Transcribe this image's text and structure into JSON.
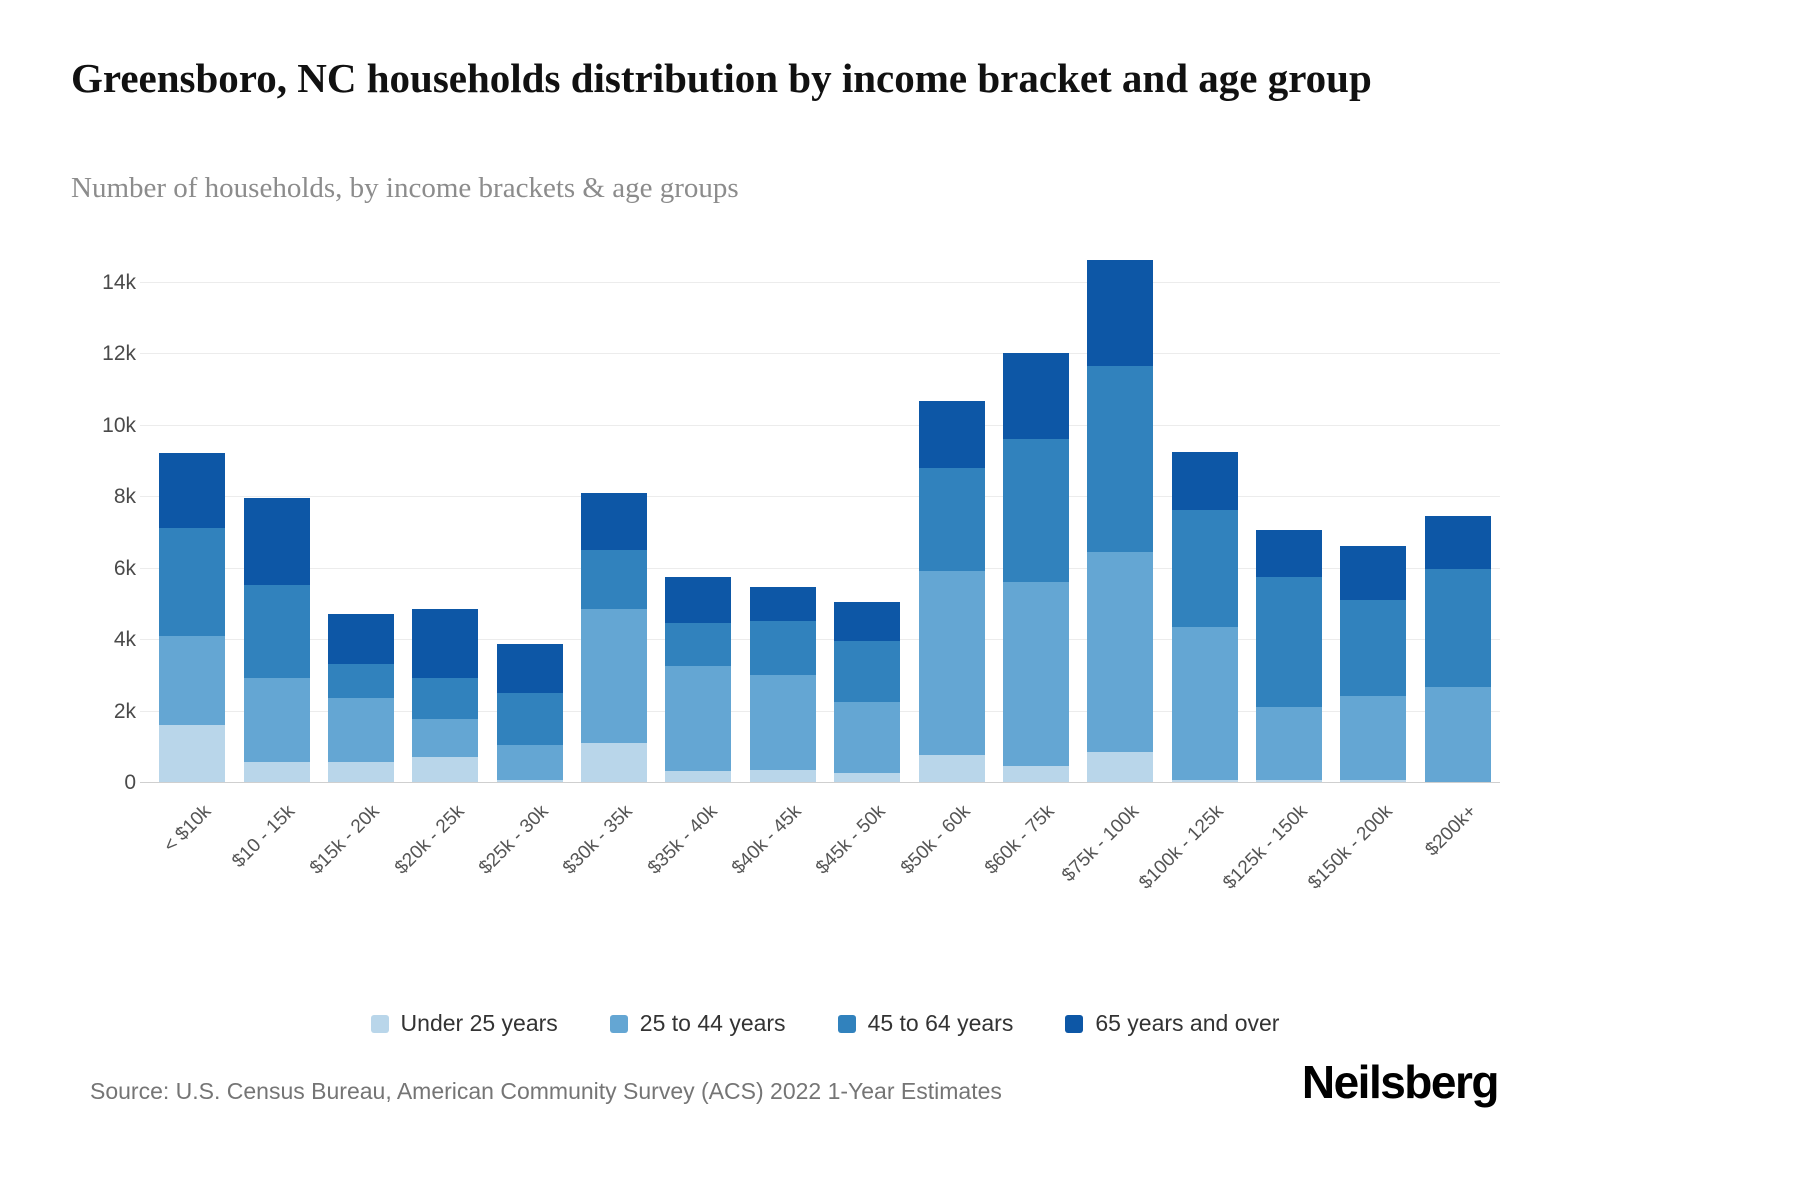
{
  "page": {
    "title": "Greensboro, NC households distribution by income bracket and age group",
    "subtitle": "Number of households, by income brackets & age groups",
    "source": "Source: U.S. Census Bureau, American Community Survey (ACS) 2022 1-Year Estimates",
    "logo": "Neilsberg"
  },
  "chart_data": {
    "type": "bar",
    "stacked": true,
    "title": "Greensboro, NC households distribution by income bracket and age group",
    "subtitle": "Number of households, by income brackets & age groups",
    "categories": [
      "< $10k",
      "$10 - 15k",
      "$15k - 20k",
      "$20k - 25k",
      "$25k - 30k",
      "$30k - 35k",
      "$35k - 40k",
      "$40k - 45k",
      "$45k - 50k",
      "$50k - 60k",
      "$60k - 75k",
      "$75k - 100k",
      "$100k - 125k",
      "$125k - 150k",
      "$150k - 200k",
      "$200k+"
    ],
    "series": [
      {
        "name": "Under 25 years",
        "color": "#b9d6ea",
        "values": [
          1600,
          550,
          550,
          700,
          50,
          1100,
          300,
          350,
          250,
          750,
          450,
          850,
          50,
          50,
          50,
          0
        ]
      },
      {
        "name": "25 to 44 years",
        "color": "#64a6d3",
        "values": [
          2500,
          2350,
          1800,
          1050,
          1000,
          3750,
          2950,
          2650,
          2000,
          5150,
          5150,
          5600,
          4300,
          2050,
          2350,
          2650
        ]
      },
      {
        "name": "45 to 64 years",
        "color": "#3182bd",
        "values": [
          3000,
          2600,
          950,
          1150,
          1450,
          1650,
          1200,
          1500,
          1700,
          2900,
          4000,
          5200,
          3250,
          3650,
          2700,
          3300
        ]
      },
      {
        "name": "65 years and over",
        "color": "#0d57a6",
        "values": [
          2100,
          2450,
          1400,
          1950,
          1350,
          1600,
          1300,
          950,
          1100,
          1850,
          2400,
          2950,
          1650,
          1300,
          1500,
          1500
        ]
      }
    ],
    "xlabel": "",
    "ylabel": "Number of households",
    "ylim": [
      0,
      15000
    ],
    "ytick_values": [
      0,
      2000,
      4000,
      6000,
      8000,
      10000,
      12000,
      14000
    ],
    "ytick_labels": [
      "0",
      "2k",
      "4k",
      "6k",
      "8k",
      "10k",
      "12k",
      "14k"
    ],
    "grid": true,
    "legend_position": "bottom"
  }
}
